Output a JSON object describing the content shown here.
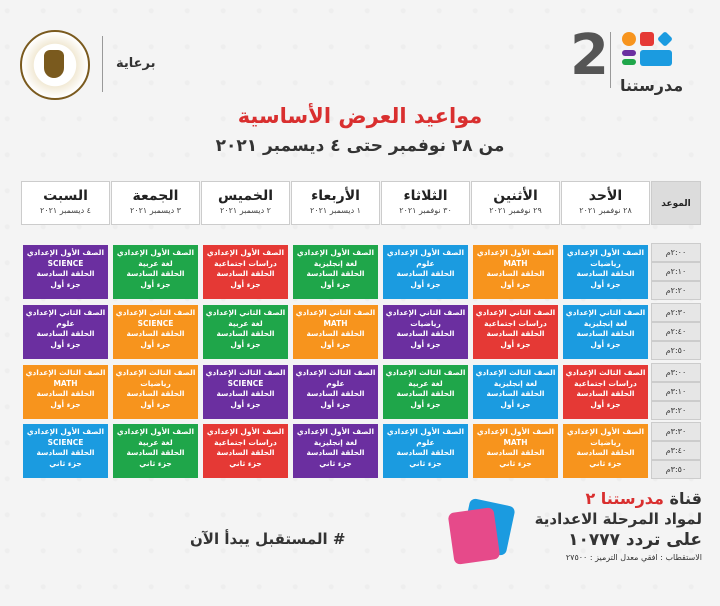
{
  "brand": {
    "number": "2",
    "name": "مدرستنا"
  },
  "sponsor": {
    "label": "برعاية"
  },
  "title": {
    "main": "مواعيد العرض الأساسية",
    "sub": "من ٢٨ نوفمبر حتى ٤ ديسمبر ٢٠٢١"
  },
  "time_header": "الموعد",
  "days": [
    {
      "name": "الأحد",
      "date": "٢٨ نوفمبر ٢٠٢١"
    },
    {
      "name": "الأثنين",
      "date": "٢٩ نوفمبر ٢٠٢١"
    },
    {
      "name": "الثلاثاء",
      "date": "٣٠ نوفمبر ٢٠٢١"
    },
    {
      "name": "الأربعاء",
      "date": "١ ديسمبر ٢٠٢١"
    },
    {
      "name": "الخميس",
      "date": "٢ ديسمبر ٢٠٢١"
    },
    {
      "name": "الجمعة",
      "date": "٣ ديسمبر ٢٠٢١"
    },
    {
      "name": "السبت",
      "date": "٤ ديسمبر ٢٠٢١"
    }
  ],
  "times": [
    "٢:٠٠م",
    "٢:١٠م",
    "٢:٢٠م",
    "٢:٣٠م",
    "٢:٤٠م",
    "٢:٥٠م",
    "٣:٠٠م",
    "٣:١٠م",
    "٣:٢٠م",
    "٣:٣٠م",
    "٣:٤٠م",
    "٣:٥٠م"
  ],
  "colors": {
    "orange": "#f7941d",
    "blue": "#1b9be0",
    "red": "#e53935",
    "green": "#1fa64a",
    "purple": "#6b2fa0",
    "accent": "#d92f2f"
  },
  "grid": [
    [
      {
        "grade": "الصف الأول الإعدادي",
        "subject": "رياضيات",
        "episode": "الحلقة السادسة",
        "part": "جزء أول",
        "color": "#1b9be0"
      },
      {
        "grade": "الصف الأول الإعدادي",
        "subject": "MATH",
        "episode": "الحلقة السادسة",
        "part": "جزء أول",
        "color": "#f7941d"
      },
      {
        "grade": "الصف الأول الإعدادي",
        "subject": "علوم",
        "episode": "الحلقة السادسة",
        "part": "جزء أول",
        "color": "#1b9be0"
      },
      {
        "grade": "الصف الأول الإعدادي",
        "subject": "لغة إنجليزية",
        "episode": "الحلقة السادسة",
        "part": "جزء أول",
        "color": "#1fa64a"
      },
      {
        "grade": "الصف الأول الإعدادي",
        "subject": "دراسات اجتماعية",
        "episode": "الحلقة السادسة",
        "part": "جزء أول",
        "color": "#e53935"
      },
      {
        "grade": "الصف الأول الإعدادي",
        "subject": "لغة عربية",
        "episode": "الحلقة السادسة",
        "part": "جزء أول",
        "color": "#1fa64a"
      },
      {
        "grade": "الصف الأول الإعدادي",
        "subject": "SCIENCE",
        "episode": "الحلقة السادسة",
        "part": "جزء أول",
        "color": "#6b2fa0"
      }
    ],
    [
      {
        "grade": "الصف الثاني الإعدادي",
        "subject": "لغة إنجليزية",
        "episode": "الحلقة السادسة",
        "part": "جزء أول",
        "color": "#1b9be0"
      },
      {
        "grade": "الصف الثاني الإعدادي",
        "subject": "دراسات اجتماعية",
        "episode": "الحلقة السادسة",
        "part": "جزء أول",
        "color": "#e53935"
      },
      {
        "grade": "الصف الثاني الإعدادي",
        "subject": "رياضيات",
        "episode": "الحلقة السادسة",
        "part": "جزء أول",
        "color": "#6b2fa0"
      },
      {
        "grade": "الصف الثاني الإعدادي",
        "subject": "MATH",
        "episode": "الحلقة السادسة",
        "part": "جزء أول",
        "color": "#f7941d"
      },
      {
        "grade": "الصف الثاني الإعدادي",
        "subject": "لغة عربية",
        "episode": "الحلقة السادسة",
        "part": "جزء أول",
        "color": "#1fa64a"
      },
      {
        "grade": "الصف الثاني الإعدادي",
        "subject": "SCIENCE",
        "episode": "الحلقة السادسة",
        "part": "جزء أول",
        "color": "#f7941d"
      },
      {
        "grade": "الصف الثاني الإعدادي",
        "subject": "علوم",
        "episode": "الحلقة السادسة",
        "part": "جزء أول",
        "color": "#6b2fa0"
      }
    ],
    [
      {
        "grade": "الصف الثالث الإعدادي",
        "subject": "دراسات اجتماعية",
        "episode": "الحلقة السادسة",
        "part": "جزء أول",
        "color": "#e53935"
      },
      {
        "grade": "الصف الثالث الإعدادي",
        "subject": "لغة إنجليزية",
        "episode": "الحلقة السادسة",
        "part": "جزء أول",
        "color": "#1b9be0"
      },
      {
        "grade": "الصف الثالث الإعدادي",
        "subject": "لغة عربية",
        "episode": "الحلقة السادسة",
        "part": "جزء أول",
        "color": "#1fa64a"
      },
      {
        "grade": "الصف الثالث الإعدادي",
        "subject": "علوم",
        "episode": "الحلقة السادسة",
        "part": "جزء أول",
        "color": "#6b2fa0"
      },
      {
        "grade": "الصف الثالث الإعدادي",
        "subject": "SCIENCE",
        "episode": "الحلقة السادسة",
        "part": "جزء أول",
        "color": "#6b2fa0"
      },
      {
        "grade": "الصف الثالث الإعدادي",
        "subject": "رياضيات",
        "episode": "الحلقة السادسة",
        "part": "جزء أول",
        "color": "#f7941d"
      },
      {
        "grade": "الصف الثالث الإعدادي",
        "subject": "MATH",
        "episode": "الحلقة السادسة",
        "part": "جزء أول",
        "color": "#f7941d"
      }
    ],
    [
      {
        "grade": "الصف الأول الإعدادي",
        "subject": "رياضيات",
        "episode": "الحلقة السادسة",
        "part": "جزء ثاني",
        "color": "#f7941d"
      },
      {
        "grade": "الصف الأول الإعدادي",
        "subject": "MATH",
        "episode": "الحلقة السادسة",
        "part": "جزء ثاني",
        "color": "#f7941d"
      },
      {
        "grade": "الصف الأول الإعدادي",
        "subject": "علوم",
        "episode": "الحلقة السادسة",
        "part": "جزء ثاني",
        "color": "#1b9be0"
      },
      {
        "grade": "الصف الأول الإعدادي",
        "subject": "لغة إنجليزية",
        "episode": "الحلقة السادسة",
        "part": "جزء ثاني",
        "color": "#6b2fa0"
      },
      {
        "grade": "الصف الأول الإعدادي",
        "subject": "دراسات اجتماعية",
        "episode": "الحلقة السادسة",
        "part": "جزء ثاني",
        "color": "#e53935"
      },
      {
        "grade": "الصف الأول الإعدادي",
        "subject": "لغة عربية",
        "episode": "الحلقة السادسة",
        "part": "جزء ثاني",
        "color": "#1fa64a"
      },
      {
        "grade": "الصف الأول الإعدادي",
        "subject": "SCIENCE",
        "episode": "الحلقة السادسة",
        "part": "جزء ثاني",
        "color": "#1b9be0"
      }
    ]
  ],
  "footer": {
    "channel_prefix": "قناة",
    "channel_name": "مدرستنا ٢",
    "line2": "لمواد المرحلة الاعدادية",
    "frequency": "على تردد ١٠٧٧٧",
    "reception": "الاستقطاب : افقي معدل الترميز : ٢٧٥٠٠",
    "hashtag": "# المستقبل يبدأ الآن"
  }
}
